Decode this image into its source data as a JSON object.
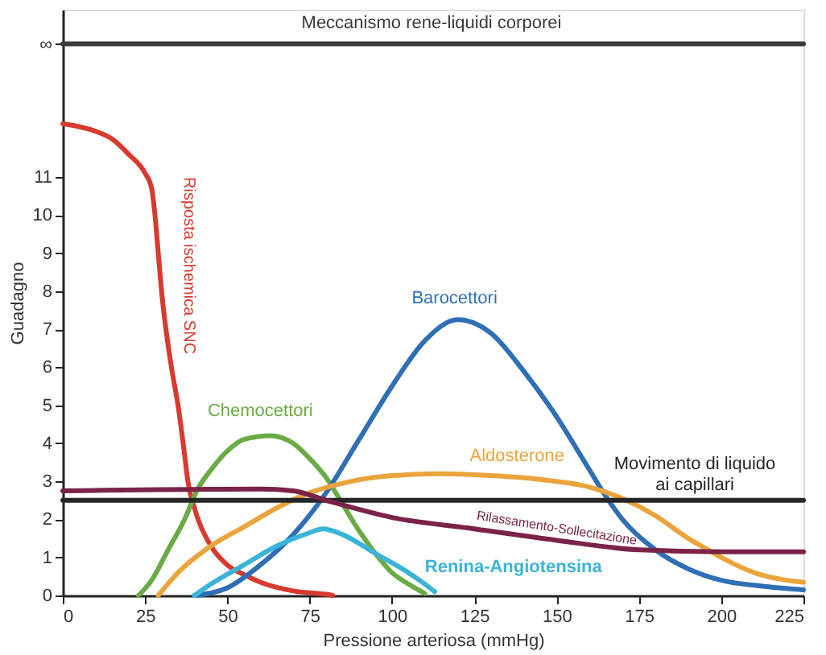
{
  "chart_data": {
    "type": "line",
    "xlabel": "Pressione arteriosa (mmHg)",
    "ylabel": "Guadagno",
    "xlim": [
      0,
      225
    ],
    "xticks": [
      0,
      25,
      50,
      75,
      100,
      125,
      150,
      175,
      200,
      225
    ],
    "ylim": [
      0,
      15.4
    ],
    "yticks": [
      0,
      1,
      2,
      3,
      4,
      5,
      6,
      7,
      8,
      9,
      10,
      11,
      {
        "value": 14.5,
        "label": "∞"
      }
    ],
    "grid": false,
    "legend": false,
    "marker": "none",
    "line_style": "solid",
    "series": [
      {
        "name": "Meccanismo rene-liquidi corporei",
        "color": "#3a3a3a",
        "x": [
          0,
          225
        ],
        "values": [
          14.5,
          14.5
        ]
      },
      {
        "name": "Risposta ischemica SNC",
        "color": "#d83a2e",
        "x": [
          0,
          10,
          15,
          20,
          25,
          27,
          28,
          29,
          30,
          33,
          35,
          37,
          38,
          40,
          45,
          50,
          55,
          60,
          70,
          80,
          82
        ],
        "values": [
          12.4,
          12.2,
          12.0,
          11.6,
          11.1,
          10.7,
          10.0,
          9.0,
          8.0,
          6.0,
          5.0,
          3.7,
          3.0,
          2.3,
          1.3,
          0.8,
          0.55,
          0.35,
          0.12,
          0.03,
          0
        ]
      },
      {
        "name": "Chemocettori",
        "color": "#6aab45",
        "x": [
          23,
          27,
          32,
          37,
          41,
          45,
          50,
          55,
          63,
          70,
          75,
          80,
          85,
          90,
          95,
          100,
          105,
          110
        ],
        "values": [
          0,
          0.4,
          1.2,
          2.0,
          2.8,
          3.3,
          3.8,
          4.1,
          4.2,
          4.0,
          3.6,
          3.1,
          2.4,
          1.7,
          1.1,
          0.6,
          0.3,
          0.05
        ]
      },
      {
        "name": "Barocettori",
        "color": "#2f6fb5",
        "x": [
          40,
          50,
          60,
          70,
          80,
          90,
          100,
          110,
          120,
          130,
          140,
          150,
          160,
          165,
          170,
          180,
          190,
          200,
          212,
          225
        ],
        "values": [
          0,
          0.2,
          0.8,
          1.6,
          2.7,
          4.1,
          5.5,
          6.7,
          7.25,
          6.9,
          5.9,
          4.7,
          3.3,
          2.6,
          2.0,
          1.2,
          0.7,
          0.4,
          0.25,
          0.15
        ]
      },
      {
        "name": "Aldosterone",
        "color": "#eaa43c",
        "x": [
          29,
          35,
          45,
          55,
          65,
          75,
          85,
          100,
          115,
          130,
          145,
          160,
          170,
          180,
          190,
          196,
          200,
          210,
          220,
          225
        ],
        "values": [
          0,
          0.6,
          1.3,
          1.8,
          2.3,
          2.7,
          2.95,
          3.15,
          3.2,
          3.15,
          3.05,
          2.85,
          2.55,
          2.1,
          1.5,
          1.2,
          1.0,
          0.6,
          0.4,
          0.35
        ]
      },
      {
        "name": "Movimento di liquido\nai capillari",
        "color": "#262626",
        "x": [
          0,
          225
        ],
        "values": [
          2.5,
          2.5
        ]
      },
      {
        "name": "Rilassamento-Sollecitazione",
        "color": "#7b2346",
        "x": [
          0,
          60,
          70,
          80,
          100,
          125,
          150,
          175,
          200,
          225
        ],
        "values": [
          2.75,
          2.8,
          2.75,
          2.5,
          2.05,
          1.75,
          1.45,
          1.2,
          1.15,
          1.15
        ]
      },
      {
        "name": "Renina-Angiotensina",
        "color": "#3bb4d8",
        "x": [
          40,
          45,
          55,
          65,
          75,
          79,
          85,
          95,
          105,
          110,
          113
        ],
        "values": [
          0,
          0.3,
          0.8,
          1.3,
          1.65,
          1.75,
          1.6,
          1.1,
          0.6,
          0.3,
          0.1
        ]
      }
    ]
  }
}
